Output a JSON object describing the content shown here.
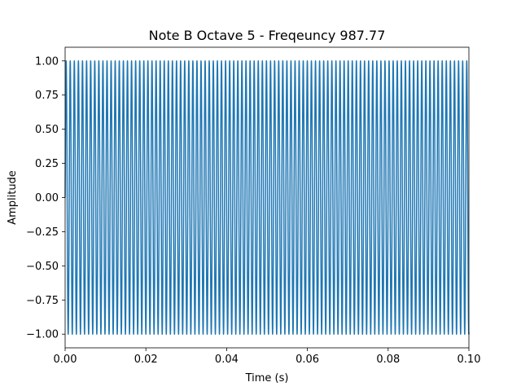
{
  "chart_data": {
    "type": "line",
    "title": "Note B Octave 5 - Freqeuncy 987.77",
    "xlabel": "Time (s)",
    "ylabel": "Amplitude",
    "xlim": [
      0.0,
      0.1
    ],
    "ylim": [
      -1.1,
      1.1
    ],
    "x_ticks": [
      0.0,
      0.02,
      0.04,
      0.06,
      0.08,
      0.1
    ],
    "x_tick_labels": [
      "0.00",
      "0.02",
      "0.04",
      "0.06",
      "0.08",
      "0.10"
    ],
    "y_ticks": [
      -1.0,
      -0.75,
      -0.5,
      -0.25,
      0.0,
      0.25,
      0.5,
      0.75,
      1.0
    ],
    "y_tick_labels": [
      "−1.00",
      "−0.75",
      "−0.50",
      "−0.25",
      "0.00",
      "0.25",
      "0.50",
      "0.75",
      "1.00"
    ],
    "grid": false,
    "legend": "none",
    "series": [
      {
        "function": "sine",
        "frequency_hz": 987.77,
        "amplitude": 1.0,
        "x_start": 0.0,
        "x_end": 0.1,
        "color": "#1f77b4"
      }
    ]
  }
}
